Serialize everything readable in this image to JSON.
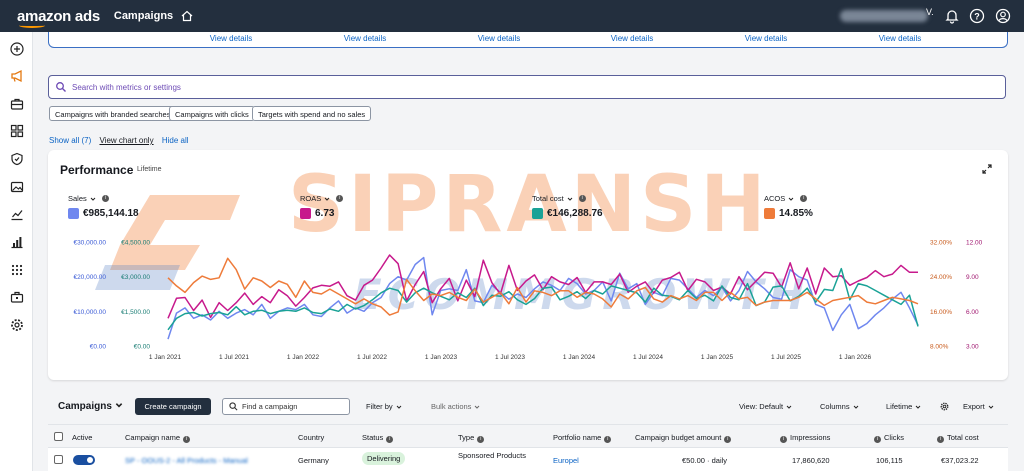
{
  "topbar": {
    "logo": "amazon ads",
    "title": "Campaigns",
    "account_suffix": "V."
  },
  "cards": {
    "view_details": "View details",
    "count": 6
  },
  "search": {
    "placeholder": "Search with metrics or settings"
  },
  "chips": [
    "Campaigns with branded searches",
    "Campaigns with clicks",
    "Targets with spend and no sales"
  ],
  "links": {
    "show_all": "Show all (7)",
    "view_chart": "View chart only",
    "hide_all": "Hide all"
  },
  "performance": {
    "title": "Performance",
    "subtitle": "Lifetime",
    "metrics": [
      {
        "label": "Sales",
        "value": "€985,144.18",
        "color": "#6f87ef"
      },
      {
        "label": "ROAS",
        "value": "6.73",
        "color": "#c7198c"
      },
      {
        "label": "Total cost",
        "value": "€146,288.76",
        "color": "#1aa296"
      },
      {
        "label": "ACOS",
        "value": "14.85%",
        "color": "#ee7b3a"
      }
    ]
  },
  "watermark": {
    "line1": "SIPRANSH",
    "line2": "ECOMMGROWTH"
  },
  "chart_data": {
    "type": "line",
    "x_labels": [
      "1 Jan 2021",
      "1 Jul 2021",
      "1 Jan 2022",
      "1 Jul 2022",
      "1 Jan 2023",
      "1 Jul 2023",
      "1 Jan 2024",
      "1 Jul 2024",
      "1 Jan 2025",
      "1 Jul 2025",
      "1 Jan 2026"
    ],
    "y_axes": {
      "sales": [
        "€30,000.00",
        "€20,000.00",
        "€10,000.00",
        "€0.00"
      ],
      "cost": [
        "€4,500.00",
        "€3,000.00",
        "€1,500.00",
        "€0.00"
      ],
      "acos": [
        "32.00%",
        "24.00%",
        "16.00%",
        "8.00%"
      ],
      "roas": [
        "12.00",
        "9.00",
        "6.00",
        "3.00"
      ]
    },
    "series": [
      {
        "name": "Sales",
        "color": "#6f87ef",
        "axis": "sales",
        "ylim": [
          0,
          30000
        ],
        "values": [
          2000,
          9500,
          11000,
          8000,
          9000,
          7500,
          10000,
          8000,
          9500,
          10500,
          9000,
          12000,
          8000,
          10000,
          11000,
          10500,
          12000,
          9000,
          8500,
          11000,
          13000,
          9500,
          11000,
          10000,
          12500,
          14000,
          18000,
          20000,
          19000,
          23500,
          25500,
          9000,
          16000,
          16500,
          16000,
          22000,
          13000,
          12500,
          17500,
          15500,
          13500,
          15000,
          14000,
          16500,
          18500,
          17500,
          16000,
          19500,
          18000,
          15000,
          16000,
          18500,
          13000,
          21000,
          16500,
          18000,
          12000,
          15500,
          14500,
          19500,
          19000,
          16500,
          14000,
          16000,
          14500,
          17000,
          13000,
          16000,
          21500,
          18500,
          16500,
          14000,
          13500,
          22000,
          20000,
          19000,
          12000,
          11000,
          4500,
          9000,
          12000,
          5000,
          6500,
          9000,
          11000,
          13500,
          15500,
          11000,
          6000
        ]
      },
      {
        "name": "ROAS",
        "color": "#c7198c",
        "axis": "roas",
        "ylim": [
          0,
          12
        ],
        "values": [
          3.2,
          5.5,
          5.6,
          4.1,
          5.3,
          3.3,
          5.0,
          4.1,
          5.0,
          6.1,
          4.8,
          5.7,
          5.0,
          6.5,
          5.8,
          4.6,
          5.6,
          6.7,
          7.0,
          6.9,
          7.4,
          5.8,
          5.3,
          7.0,
          7.6,
          9.0,
          10.5,
          9.5,
          5.2,
          7.1,
          8.6,
          5.0,
          6.6,
          7.8,
          5.2,
          7.6,
          5.7,
          9.9,
          7.3,
          6.0,
          9.3,
          6.4,
          7.5,
          8.2,
          6.5,
          8.0,
          7.4,
          7.1,
          7.9,
          6.2,
          7.4,
          7.4,
          7.1,
          8.3,
          6.2,
          6.9,
          7.4,
          6.1,
          7.6,
          7.9,
          8.5,
          6.4,
          7.7,
          7.4,
          6.4,
          6.8,
          6.0,
          8.0,
          6.5,
          7.5,
          8.5,
          8.4,
          6.8,
          9.6,
          6.6,
          9.0,
          6.0,
          9.0,
          8.0,
          8.1,
          7.0,
          7.5,
          7.9,
          8.7,
          8.0,
          8.3,
          9.3,
          8.5,
          8.5
        ]
      },
      {
        "name": "Total cost",
        "color": "#1aa296",
        "axis": "cost",
        "ylim": [
          0,
          4500
        ],
        "values": [
          700,
          1200,
          1400,
          1450,
          1300,
          1400,
          1450,
          1350,
          1700,
          1350,
          1500,
          1550,
          1400,
          1500,
          1550,
          1500,
          1650,
          1450,
          1400,
          1600,
          1500,
          1800,
          1600,
          1750,
          2000,
          2300,
          2500,
          2400,
          1900,
          2300,
          2500,
          2300,
          2150,
          2000,
          2300,
          2100,
          2500,
          1750,
          2200,
          2150,
          2350,
          2000,
          1800,
          2050,
          2500,
          2550,
          2000,
          2150,
          2350,
          2050,
          2400,
          2250,
          2600,
          2500,
          2400,
          2300,
          1900,
          2500,
          2200,
          2150,
          2000,
          2400,
          2050,
          2200,
          1950,
          2600,
          2100,
          2000,
          2700,
          1750,
          1900,
          2550,
          2600,
          1950,
          2150,
          2500,
          1900,
          2450,
          2400,
          3350,
          2000,
          2700,
          2600,
          2400,
          2200,
          2000,
          1800,
          2200,
          850
        ]
      },
      {
        "name": "ACOS",
        "color": "#ee7b3a",
        "axis": "acos",
        "ylim": [
          0,
          32
        ],
        "values": [
          21.0,
          18.5,
          16.5,
          19.5,
          21.5,
          20.5,
          21.0,
          27.0,
          23.5,
          17.5,
          21.0,
          20.0,
          18.0,
          20.0,
          19.0,
          15.0,
          20.0,
          16.5,
          16.0,
          17.5,
          16.0,
          14.5,
          13.0,
          14.5,
          13.0,
          12.0,
          9.5,
          10.5,
          20.5,
          17.0,
          14.0,
          16.0,
          15.5,
          16.5,
          15.0,
          14.0,
          17.5,
          13.5,
          15.0,
          16.5,
          13.0,
          18.0,
          13.5,
          17.0,
          16.5,
          15.5,
          17.0,
          17.0,
          15.0,
          16.5,
          16.0,
          14.5,
          12.0,
          16.0,
          14.5,
          17.0,
          18.0,
          14.5,
          13.5,
          15.5,
          14.5,
          15.5,
          14.0,
          16.5,
          16.5,
          14.0,
          16.5,
          14.5,
          15.0,
          12.5,
          13.5,
          14.0,
          14.0,
          14.0,
          15.0,
          16.5,
          14.5,
          12.5,
          14.0,
          14.5,
          15.0,
          15.5,
          13.5,
          13.0,
          14.0,
          15.0,
          14.5,
          14.0,
          13.0
        ]
      }
    ]
  },
  "campaign_bar": {
    "title": "Campaigns",
    "create": "Create campaign",
    "find_placeholder": "Find a campaign",
    "filter": "Filter by",
    "bulk": "Bulk actions",
    "view": "View: Default",
    "columns": "Columns",
    "range": "Lifetime",
    "export": "Export"
  },
  "table": {
    "headers": [
      "Active",
      "Campaign name",
      "Country",
      "Status",
      "Type",
      "Portfolio name",
      "Campaign budget amount",
      "Impressions",
      "Clicks",
      "Total cost"
    ],
    "row": {
      "name": "SP - OOUS-2 - All Products - Manual",
      "country": "Germany",
      "status": "Delivering",
      "type": "Sponsored Products",
      "portfolio": "Europel",
      "budget": "€50.00 · daily",
      "impressions": "17,860,620",
      "clicks": "106,115",
      "cost": "€37,023.22"
    }
  }
}
